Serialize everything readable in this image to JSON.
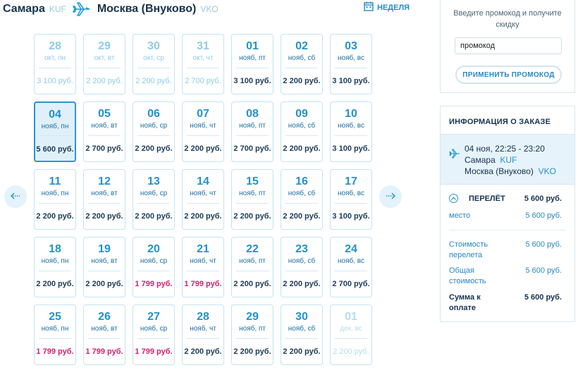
{
  "route": {
    "from_city": "Самара",
    "from_code": "KUF",
    "to_city": "Москва (Внуково)",
    "to_code": "VKO",
    "week_label": "НЕДЕЛЯ"
  },
  "calendar": {
    "days": [
      {
        "num": "28",
        "wd": "окт, пн",
        "price": "3 100 руб.",
        "state": "past"
      },
      {
        "num": "29",
        "wd": "окт, вт",
        "price": "2 200 руб.",
        "state": "past"
      },
      {
        "num": "30",
        "wd": "окт, ср",
        "price": "2 200 руб.",
        "state": "past"
      },
      {
        "num": "31",
        "wd": "окт, чт",
        "price": "2 700 руб.",
        "state": "past"
      },
      {
        "num": "01",
        "wd": "нояб, пт",
        "price": "3 100 руб.",
        "state": "normal"
      },
      {
        "num": "02",
        "wd": "нояб, сб",
        "price": "2 200 руб.",
        "state": "normal"
      },
      {
        "num": "03",
        "wd": "нояб, вс",
        "price": "3 100 руб.",
        "state": "normal"
      },
      {
        "num": "04",
        "wd": "нояб, пн",
        "price": "5 600 руб.",
        "state": "selected"
      },
      {
        "num": "05",
        "wd": "нояб, вт",
        "price": "2 700 руб.",
        "state": "normal"
      },
      {
        "num": "06",
        "wd": "нояб, ср",
        "price": "2 200 руб.",
        "state": "normal"
      },
      {
        "num": "07",
        "wd": "нояб, чт",
        "price": "2 200 руб.",
        "state": "normal"
      },
      {
        "num": "08",
        "wd": "нояб, пт",
        "price": "2 700 руб.",
        "state": "normal"
      },
      {
        "num": "09",
        "wd": "нояб, сб",
        "price": "2 200 руб.",
        "state": "normal"
      },
      {
        "num": "10",
        "wd": "нояб, вс",
        "price": "3 100 руб.",
        "state": "normal"
      },
      {
        "num": "11",
        "wd": "нояб, пн",
        "price": "2 200 руб.",
        "state": "normal"
      },
      {
        "num": "12",
        "wd": "нояб, вт",
        "price": "2 200 руб.",
        "state": "normal"
      },
      {
        "num": "13",
        "wd": "нояб, ср",
        "price": "2 200 руб.",
        "state": "normal"
      },
      {
        "num": "14",
        "wd": "нояб, чт",
        "price": "2 200 руб.",
        "state": "normal"
      },
      {
        "num": "15",
        "wd": "нояб, пт",
        "price": "2 200 руб.",
        "state": "normal"
      },
      {
        "num": "16",
        "wd": "нояб, сб",
        "price": "2 200 руб.",
        "state": "normal"
      },
      {
        "num": "17",
        "wd": "нояб, вс",
        "price": "3 100 руб.",
        "state": "normal"
      },
      {
        "num": "18",
        "wd": "нояб, пн",
        "price": "2 200 руб.",
        "state": "normal"
      },
      {
        "num": "19",
        "wd": "нояб, вт",
        "price": "2 200 руб.",
        "state": "normal"
      },
      {
        "num": "20",
        "wd": "нояб, ср",
        "price": "1 799 руб.",
        "state": "cheap"
      },
      {
        "num": "21",
        "wd": "нояб, чт",
        "price": "1 799 руб.",
        "state": "cheap"
      },
      {
        "num": "22",
        "wd": "нояб, пт",
        "price": "2 200 руб.",
        "state": "normal"
      },
      {
        "num": "23",
        "wd": "нояб, сб",
        "price": "2 200 руб.",
        "state": "normal"
      },
      {
        "num": "24",
        "wd": "нояб, вс",
        "price": "2 700 руб.",
        "state": "normal"
      },
      {
        "num": "25",
        "wd": "нояб, пн",
        "price": "1 799 руб.",
        "state": "cheap"
      },
      {
        "num": "26",
        "wd": "нояб, вт",
        "price": "1 799 руб.",
        "state": "cheap"
      },
      {
        "num": "27",
        "wd": "нояб, ср",
        "price": "1 799 руб.",
        "state": "cheap"
      },
      {
        "num": "28",
        "wd": "нояб, чт",
        "price": "2 200 руб.",
        "state": "normal"
      },
      {
        "num": "29",
        "wd": "нояб, пт",
        "price": "2 200 руб.",
        "state": "normal"
      },
      {
        "num": "30",
        "wd": "нояб, сб",
        "price": "2 200 руб.",
        "state": "normal"
      },
      {
        "num": "01",
        "wd": "дек, вс",
        "price": "2 200 руб.",
        "state": "next"
      }
    ]
  },
  "promo": {
    "hint": "Введите промокод и получите скидку",
    "placeholder": "промокод",
    "button": "ПРИМЕНИТЬ ПРОМОКОД"
  },
  "order": {
    "title": "ИНФОРМАЦИЯ О ЗАКАЗЕ",
    "flight_time": "04 ноя, 22:25 - 23:20",
    "from_city": "Самара",
    "from_code": "KUF",
    "to_city": "Москва (Внуково)",
    "to_code": "VKO",
    "segment_title": "ПЕРЕЛЁТ",
    "segment_price": "5 600 руб.",
    "seat_label": "место",
    "seat_price": "5 600 руб.",
    "cost_label": "Стоимость перелета",
    "cost_value": "5 600 руб.",
    "total_label": "Общая стоимость",
    "total_value": "5 600 руб.",
    "pay_label": "Сумма к оплате",
    "pay_value": "5 600 руб."
  },
  "colors": {
    "accent": "#2392cf",
    "cheap_price": "#d1206f",
    "selected_bg": "#dff0f9"
  }
}
